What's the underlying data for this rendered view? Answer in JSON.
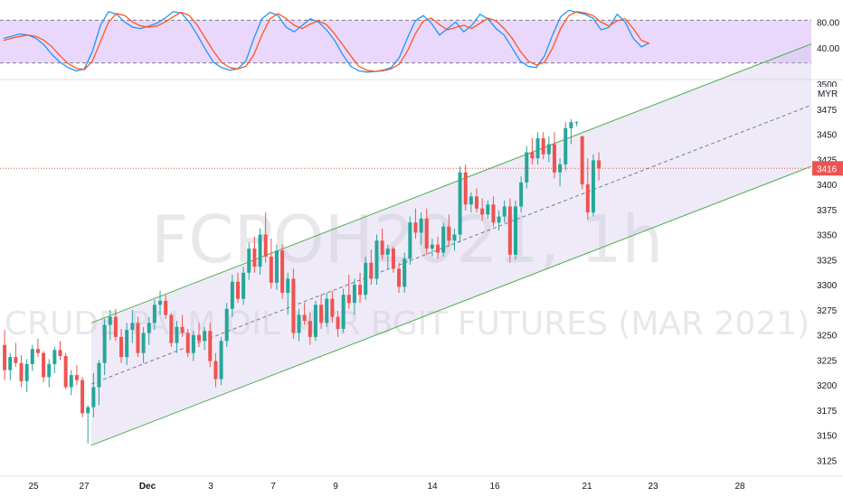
{
  "watermark": {
    "symbol": "FCPOH2021, 1h",
    "description": "CRUDE PALM OIL MYR BGIT FUTURES (MAR 2021)"
  },
  "currency": "MYR",
  "last_price": "3416",
  "colors": {
    "up": "#26a69a",
    "down": "#ef5350",
    "channel": "#4caf50",
    "channel_fill": "#d1c4e9",
    "stoch_band": "#e1c7fb",
    "stoch_k": "#2196f3",
    "stoch_d": "#ff5722",
    "price_line": "#ef5350"
  },
  "chart_data": [
    {
      "type": "line",
      "title": "",
      "ylim": [
        0,
        100
      ],
      "y_ticks": [
        "80.00",
        "40.00"
      ],
      "band": [
        20,
        80
      ],
      "series": [
        {
          "role": "k",
          "values": [
            55,
            58,
            62,
            60,
            55,
            45,
            30,
            18,
            10,
            5,
            8,
            35,
            75,
            96,
            92,
            80,
            72,
            70,
            74,
            78,
            86,
            96,
            94,
            80,
            60,
            38,
            18,
            10,
            6,
            8,
            20,
            55,
            85,
            95,
            90,
            72,
            65,
            75,
            85,
            80,
            68,
            52,
            30,
            12,
            5,
            3,
            4,
            6,
            10,
            25,
            55,
            82,
            90,
            78,
            60,
            70,
            80,
            65,
            75,
            92,
            85,
            70,
            60,
            40,
            20,
            12,
            10,
            28,
            60,
            88,
            98,
            95,
            92,
            86,
            68,
            72,
            92,
            80,
            55,
            42,
            48
          ]
        },
        {
          "role": "d",
          "values": [
            52,
            55,
            58,
            60,
            58,
            52,
            42,
            28,
            16,
            9,
            7,
            20,
            50,
            80,
            93,
            90,
            80,
            74,
            72,
            74,
            80,
            88,
            95,
            90,
            75,
            55,
            35,
            18,
            10,
            8,
            12,
            30,
            60,
            85,
            93,
            85,
            75,
            70,
            77,
            82,
            76,
            62,
            45,
            28,
            12,
            6,
            4,
            5,
            8,
            15,
            35,
            62,
            82,
            86,
            76,
            68,
            72,
            75,
            70,
            78,
            86,
            82,
            70,
            55,
            35,
            20,
            14,
            18,
            40,
            70,
            90,
            96,
            94,
            90,
            80,
            74,
            82,
            85,
            70,
            52,
            47
          ]
        }
      ]
    },
    {
      "type": "candlestick",
      "ylabel": "MYR",
      "ylim": [
        3100,
        3500
      ],
      "y_ticks": [
        3125,
        3150,
        3175,
        3200,
        3225,
        3250,
        3275,
        3300,
        3325,
        3350,
        3375,
        3400,
        3425,
        3450,
        3475,
        3500
      ],
      "x_ticks": [
        "25",
        "27",
        "Dec",
        "3",
        "7",
        "9",
        "14",
        "16",
        "21",
        "23",
        "28"
      ],
      "candles": [
        [
          3240,
          3255,
          3205,
          3215
        ],
        [
          3215,
          3232,
          3205,
          3228
        ],
        [
          3228,
          3242,
          3218,
          3222
        ],
        [
          3222,
          3230,
          3198,
          3204
        ],
        [
          3204,
          3226,
          3193,
          3221
        ],
        [
          3221,
          3240,
          3214,
          3236
        ],
        [
          3236,
          3246,
          3228,
          3232
        ],
        [
          3232,
          3234,
          3203,
          3208
        ],
        [
          3208,
          3226,
          3198,
          3221
        ],
        [
          3221,
          3238,
          3212,
          3235
        ],
        [
          3235,
          3244,
          3225,
          3229
        ],
        [
          3229,
          3232,
          3196,
          3198
        ],
        [
          3198,
          3215,
          3190,
          3210
        ],
        [
          3210,
          3220,
          3200,
          3205
        ],
        [
          3205,
          3208,
          3168,
          3172
        ],
        [
          3172,
          3180,
          3142,
          3178
        ],
        [
          3178,
          3212,
          3168,
          3198
        ],
        [
          3198,
          3225,
          3180,
          3222
        ],
        [
          3222,
          3266,
          3210,
          3260
        ],
        [
          3260,
          3275,
          3245,
          3268
        ],
        [
          3268,
          3276,
          3244,
          3248
        ],
        [
          3248,
          3256,
          3222,
          3228
        ],
        [
          3228,
          3262,
          3220,
          3255
        ],
        [
          3255,
          3275,
          3242,
          3262
        ],
        [
          3262,
          3268,
          3228,
          3232
        ],
        [
          3232,
          3258,
          3222,
          3252
        ],
        [
          3252,
          3268,
          3240,
          3262
        ],
        [
          3262,
          3285,
          3255,
          3280
        ],
        [
          3280,
          3294,
          3270,
          3284
        ],
        [
          3284,
          3290,
          3266,
          3270
        ],
        [
          3270,
          3272,
          3238,
          3242
        ],
        [
          3242,
          3264,
          3232,
          3258
        ],
        [
          3258,
          3270,
          3248,
          3252
        ],
        [
          3252,
          3256,
          3228,
          3232
        ],
        [
          3232,
          3254,
          3224,
          3250
        ],
        [
          3250,
          3262,
          3238,
          3244
        ],
        [
          3244,
          3258,
          3235,
          3254
        ],
        [
          3254,
          3262,
          3218,
          3224
        ],
        [
          3224,
          3232,
          3198,
          3206
        ],
        [
          3206,
          3248,
          3200,
          3244
        ],
        [
          3244,
          3282,
          3238,
          3276
        ],
        [
          3276,
          3310,
          3268,
          3303
        ],
        [
          3303,
          3312,
          3282,
          3286
        ],
        [
          3286,
          3318,
          3280,
          3312
        ],
        [
          3312,
          3342,
          3305,
          3336
        ],
        [
          3336,
          3348,
          3312,
          3318
        ],
        [
          3318,
          3356,
          3310,
          3350
        ],
        [
          3350,
          3372,
          3322,
          3328
        ],
        [
          3328,
          3346,
          3296,
          3302
        ],
        [
          3302,
          3340,
          3295,
          3334
        ],
        [
          3334,
          3340,
          3286,
          3292
        ],
        [
          3292,
          3312,
          3270,
          3306
        ],
        [
          3306,
          3316,
          3246,
          3252
        ],
        [
          3252,
          3276,
          3244,
          3270
        ],
        [
          3270,
          3282,
          3260,
          3264
        ],
        [
          3264,
          3272,
          3240,
          3248
        ],
        [
          3248,
          3284,
          3244,
          3280
        ],
        [
          3280,
          3290,
          3256,
          3262
        ],
        [
          3262,
          3292,
          3258,
          3286
        ],
        [
          3286,
          3294,
          3262,
          3268
        ],
        [
          3268,
          3274,
          3248,
          3256
        ],
        [
          3256,
          3296,
          3252,
          3290
        ],
        [
          3290,
          3310,
          3276,
          3282
        ],
        [
          3282,
          3306,
          3270,
          3300
        ],
        [
          3300,
          3312,
          3282,
          3290
        ],
        [
          3290,
          3328,
          3285,
          3322
        ],
        [
          3322,
          3335,
          3300,
          3306
        ],
        [
          3306,
          3350,
          3300,
          3344
        ],
        [
          3344,
          3356,
          3325,
          3330
        ],
        [
          3330,
          3340,
          3316,
          3336
        ],
        [
          3336,
          3338,
          3312,
          3316
        ],
        [
          3316,
          3322,
          3292,
          3298
        ],
        [
          3298,
          3332,
          3292,
          3326
        ],
        [
          3326,
          3368,
          3320,
          3362
        ],
        [
          3362,
          3376,
          3346,
          3352
        ],
        [
          3352,
          3372,
          3340,
          3366
        ],
        [
          3366,
          3376,
          3330,
          3336
        ],
        [
          3336,
          3346,
          3328,
          3340
        ],
        [
          3340,
          3348,
          3326,
          3332
        ],
        [
          3332,
          3362,
          3328,
          3358
        ],
        [
          3358,
          3370,
          3338,
          3344
        ],
        [
          3344,
          3356,
          3334,
          3350
        ],
        [
          3350,
          3418,
          3342,
          3412
        ],
        [
          3412,
          3420,
          3374,
          3380
        ],
        [
          3380,
          3392,
          3372,
          3388
        ],
        [
          3388,
          3396,
          3372,
          3376
        ],
        [
          3376,
          3386,
          3364,
          3370
        ],
        [
          3370,
          3384,
          3366,
          3380
        ],
        [
          3380,
          3388,
          3358,
          3362
        ],
        [
          3362,
          3374,
          3354,
          3368
        ],
        [
          3368,
          3384,
          3362,
          3378
        ],
        [
          3378,
          3386,
          3322,
          3330
        ],
        [
          3330,
          3384,
          3325,
          3378
        ],
        [
          3378,
          3408,
          3372,
          3402
        ],
        [
          3402,
          3438,
          3396,
          3432
        ],
        [
          3432,
          3446,
          3420,
          3426
        ],
        [
          3426,
          3452,
          3420,
          3446
        ],
        [
          3446,
          3452,
          3425,
          3430
        ],
        [
          3430,
          3448,
          3422,
          3440
        ],
        [
          3440,
          3452,
          3406,
          3412
        ],
        [
          3412,
          3426,
          3398,
          3420
        ],
        [
          3420,
          3462,
          3414,
          3456
        ],
        [
          3456,
          3465,
          3440,
          3462
        ],
        [
          3462,
          3463,
          3458,
          3462
        ],
        [
          3448,
          3448,
          3395,
          3400
        ],
        [
          3400,
          3426,
          3365,
          3372
        ],
        [
          3372,
          3430,
          3368,
          3424
        ],
        [
          3424,
          3432,
          3404,
          3416
        ]
      ]
    }
  ]
}
